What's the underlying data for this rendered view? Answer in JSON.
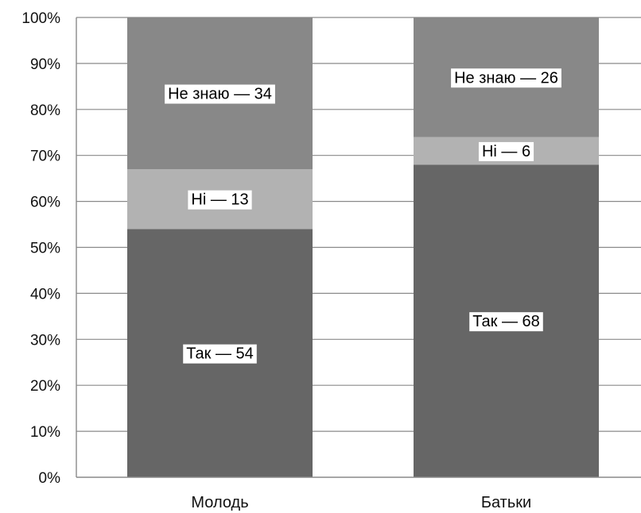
{
  "chart_data": {
    "type": "bar",
    "stacked": true,
    "title": "",
    "xlabel": "",
    "ylabel": "",
    "ylim": [
      0,
      100
    ],
    "yticks": [
      "0%",
      "10%",
      "20%",
      "30%",
      "40%",
      "50%",
      "60%",
      "70%",
      "80%",
      "90%",
      "100%"
    ],
    "grid": true,
    "legend": "none",
    "categories": [
      "Молодь",
      "Батьки"
    ],
    "series": [
      {
        "key": "yes",
        "color": "#666666",
        "values": [
          54,
          68
        ],
        "labels": [
          "Так — 54",
          "Так — 68"
        ]
      },
      {
        "key": "no",
        "color": "#b2b2b2",
        "values": [
          13,
          6
        ],
        "labels": [
          "Ні — 13",
          "Ні — 6"
        ]
      },
      {
        "key": "dont-know",
        "color": "#888888",
        "values": [
          34,
          26
        ],
        "labels": [
          "Не знаю — 34",
          "Не знаю — 26"
        ]
      }
    ]
  }
}
